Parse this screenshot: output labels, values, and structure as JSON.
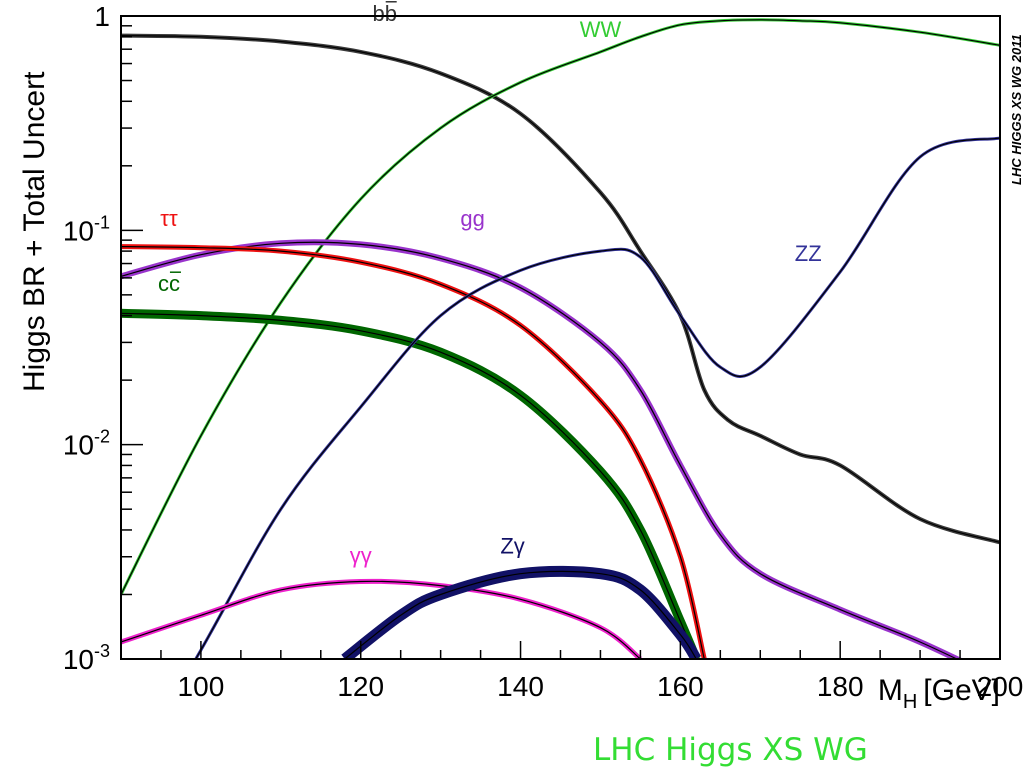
{
  "chart_data": {
    "type": "line",
    "ylabel": "Higgs BR + Total Uncert",
    "xlabel": "M",
    "xlabel_sub": "H",
    "xlabel_unit": "[GeV]",
    "side_label": "LHC HIGGS XS WG 2011",
    "xlim": [
      90,
      200
    ],
    "ylim": [
      0.001,
      1
    ],
    "yscale": "log",
    "x_ticks": [
      100,
      120,
      140,
      160,
      180,
      200
    ],
    "y_ticks": [
      {
        "value": 1,
        "base": "1",
        "exp": ""
      },
      {
        "value": 0.1,
        "base": "10",
        "exp": "-1"
      },
      {
        "value": 0.01,
        "base": "10",
        "exp": "-2"
      },
      {
        "value": 0.001,
        "base": "10",
        "exp": "-3"
      }
    ],
    "grid": false,
    "series": [
      {
        "name": "bb",
        "overline": true,
        "color": "#3a3a3a",
        "band": 4,
        "x": [
          90,
          100,
          110,
          120,
          130,
          140,
          150,
          155,
          160,
          163,
          166,
          170,
          175,
          180,
          190,
          200
        ],
        "y": [
          0.81,
          0.8,
          0.76,
          0.68,
          0.54,
          0.35,
          0.15,
          0.08,
          0.04,
          0.018,
          0.013,
          0.011,
          0.009,
          0.008,
          0.0045,
          0.0035
        ]
      },
      {
        "name": "WW",
        "overline": false,
        "color": "#33cc33",
        "band": 3,
        "x": [
          90,
          100,
          110,
          120,
          130,
          140,
          150,
          155,
          160,
          165,
          170,
          175,
          180,
          190,
          200
        ],
        "y": [
          0.002,
          0.011,
          0.046,
          0.14,
          0.3,
          0.49,
          0.68,
          0.8,
          0.91,
          0.95,
          0.96,
          0.95,
          0.93,
          0.84,
          0.73
        ]
      },
      {
        "name": "gg",
        "overline": false,
        "color": "#9933cc",
        "band": 6,
        "x": [
          90,
          100,
          110,
          120,
          130,
          140,
          150,
          155,
          160,
          165,
          170,
          180,
          190,
          200
        ],
        "y": [
          0.061,
          0.077,
          0.087,
          0.086,
          0.074,
          0.054,
          0.03,
          0.018,
          0.008,
          0.0038,
          0.0025,
          0.0017,
          0.0012,
          0.0008
        ]
      },
      {
        "name": "ττ",
        "overline": false,
        "color": "#ee1111",
        "band": 5,
        "x": [
          90,
          100,
          110,
          120,
          130,
          140,
          150,
          155,
          160,
          163
        ],
        "y": [
          0.084,
          0.083,
          0.08,
          0.071,
          0.056,
          0.036,
          0.016,
          0.0085,
          0.003,
          0.001
        ]
      },
      {
        "name": "cc",
        "overline": true,
        "color": "#006600",
        "band": 9,
        "x": [
          90,
          100,
          110,
          120,
          130,
          140,
          150,
          155,
          160,
          162
        ],
        "y": [
          0.041,
          0.04,
          0.038,
          0.034,
          0.027,
          0.017,
          0.0075,
          0.004,
          0.0015,
          0.001
        ]
      },
      {
        "name": "ZZ",
        "overline": false,
        "color": "#333399",
        "band": 3,
        "x": [
          90,
          100,
          110,
          120,
          130,
          140,
          150,
          155,
          160,
          165,
          170,
          180,
          190,
          200
        ],
        "y": [
          0.00025,
          0.0011,
          0.005,
          0.015,
          0.04,
          0.065,
          0.08,
          0.075,
          0.04,
          0.023,
          0.023,
          0.064,
          0.22,
          0.27
        ]
      },
      {
        "name": "γγ",
        "overline": false,
        "color": "#ee22cc",
        "band": 5,
        "x": [
          90,
          100,
          110,
          120,
          130,
          140,
          150,
          155
        ],
        "y": [
          0.0012,
          0.0016,
          0.0021,
          0.0023,
          0.0022,
          0.0019,
          0.0014,
          0.001
        ]
      },
      {
        "name": "Zγ",
        "overline": false,
        "color": "#111166",
        "band": 11,
        "x": [
          118,
          125,
          130,
          140,
          150,
          155,
          160,
          162
        ],
        "y": [
          0.001,
          0.0016,
          0.002,
          0.0025,
          0.0025,
          0.0021,
          0.0013,
          0.001
        ]
      }
    ],
    "annotations": [
      {
        "text": "bb",
        "overline": true,
        "color": "#333333",
        "x": 123,
        "y": 0.95
      },
      {
        "text": "WW",
        "overline": false,
        "color": "#33cc33",
        "x": 150,
        "y": 0.8
      },
      {
        "text": "ττ",
        "overline": false,
        "color": "#ee1111",
        "x": 96,
        "y": 0.105
      },
      {
        "text": "gg",
        "overline": false,
        "color": "#9933cc",
        "x": 134,
        "y": 0.105
      },
      {
        "text": "cc",
        "overline": true,
        "color": "#006600",
        "x": 96,
        "y": 0.052
      },
      {
        "text": "ZZ",
        "overline": false,
        "color": "#333399",
        "x": 176,
        "y": 0.072
      },
      {
        "text": "γγ",
        "overline": false,
        "color": "#ee22cc",
        "x": 120,
        "y": 0.0028
      },
      {
        "text": "Zγ",
        "overline": false,
        "color": "#111166",
        "x": 139,
        "y": 0.0031
      }
    ],
    "footer": "LHC Higgs XS WG"
  }
}
